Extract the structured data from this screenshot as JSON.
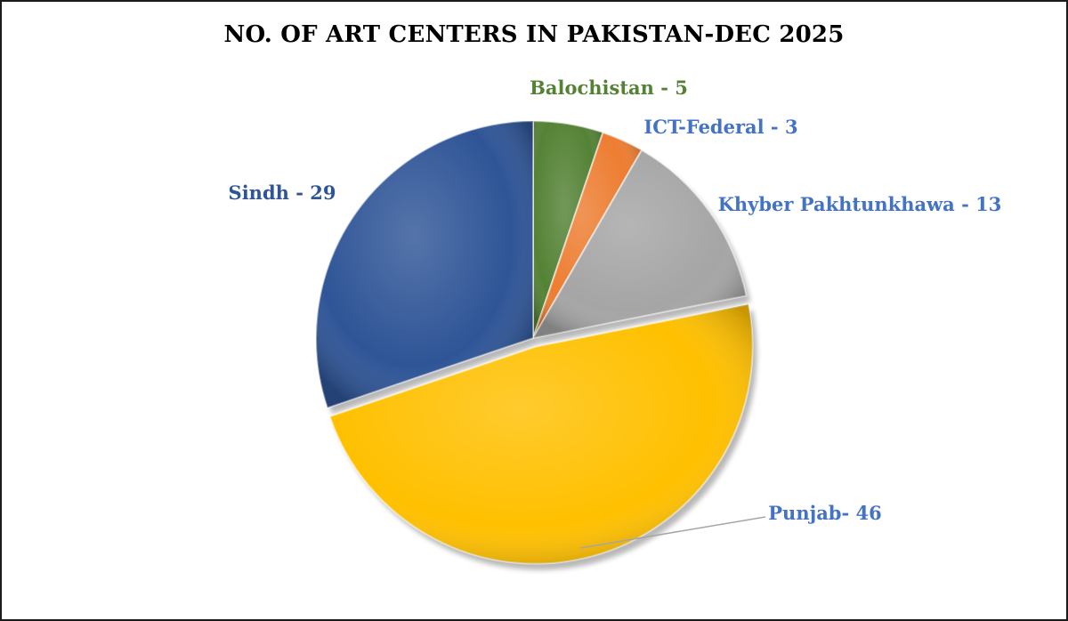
{
  "chart_data": {
    "type": "pie",
    "title": "NO. OF ART CENTERS IN PAKISTAN-DEC 2025",
    "categories": [
      "Balochistan",
      "ICT-Federal",
      "Khyber Pakhtunkhawa",
      "Punjab",
      "Sindh"
    ],
    "values": [
      5,
      3,
      13,
      46,
      29
    ],
    "data_labels": [
      "Balochistan - 5",
      "ICT-Federal - 3",
      "Khyber Pakhtunkhawa - 13",
      "Punjab- 46",
      "Sindh - 29"
    ],
    "colors": [
      "#548235",
      "#ED7D31",
      "#A5A5A5",
      "#FFC000",
      "#2F5597"
    ],
    "label_colors": [
      "#548235",
      "#4472C4",
      "#4472C4",
      "#4472C4",
      "#2F5597"
    ],
    "exploded": [
      "Punjab"
    ],
    "legend": "none"
  }
}
